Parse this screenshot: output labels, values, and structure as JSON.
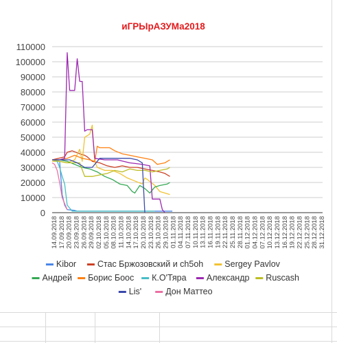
{
  "chart_data": {
    "type": "line",
    "title": "иГРЫрАЗУМа2018",
    "title_color": "#e31a1c",
    "ylim": [
      0,
      110000
    ],
    "yticks": [
      0,
      10000,
      20000,
      30000,
      40000,
      50000,
      60000,
      70000,
      80000,
      90000,
      100000,
      110000
    ],
    "ytick_labels": [
      "0",
      "10000",
      "20000",
      "30000",
      "40000",
      "50000",
      "60000",
      "70000",
      "80000",
      "90000",
      "100000",
      "110000"
    ],
    "x_range": [
      "2018-09-14",
      "2018-12-31"
    ],
    "xtick_labels": [
      "14.09.2018",
      "17.09.2018",
      "20.09.2018",
      "23.09.2018",
      "26.09.2018",
      "29.09.2018",
      "02.10.2018",
      "05.10.2018",
      "08.10.2018",
      "11.10.2018",
      "14.10.2018",
      "17.10.2018",
      "20.10.2018",
      "23.10.2018",
      "26.10.2018",
      "29.10.2018",
      "01.11.2018",
      "04.11.2018",
      "07.11.2018",
      "10.11.2018",
      "13.11.2018",
      "16.11.2018",
      "19.11.2018",
      "22.11.2018",
      "25.11.2018",
      "28.11.2018",
      "01.12.2018",
      "04.12.2018",
      "07.12.2018",
      "10.12.2018",
      "13.12.2018",
      "16.12.2018",
      "19.12.2018",
      "22.12.2018",
      "25.12.2018",
      "28.12.2018",
      "31.12.2018"
    ],
    "grid": true,
    "legend_position": "bottom",
    "series": [
      {
        "name": "Kibor",
        "color": "#4a86e8",
        "points": [
          [
            "2018-09-14",
            35000
          ],
          [
            "2018-09-17",
            34000
          ],
          [
            "2018-09-18",
            12000
          ],
          [
            "2018-09-19",
            5000
          ],
          [
            "2018-09-20",
            2000
          ],
          [
            "2018-09-23",
            1500
          ],
          [
            "2018-09-24",
            1000
          ],
          [
            "2018-10-10",
            1000
          ],
          [
            "2018-10-25",
            1000
          ],
          [
            "2018-11-01",
            1000
          ]
        ]
      },
      {
        "name": "Стас Бржозовский и ch5oh",
        "color": "#cc4125",
        "points": [
          [
            "2018-09-14",
            35000
          ],
          [
            "2018-09-19",
            37000
          ],
          [
            "2018-09-20",
            40000
          ],
          [
            "2018-09-22",
            41000
          ],
          [
            "2018-09-25",
            39000
          ],
          [
            "2018-09-27",
            38000
          ],
          [
            "2018-09-28",
            37000
          ],
          [
            "2018-09-30",
            34000
          ],
          [
            "2018-10-03",
            33000
          ],
          [
            "2018-10-06",
            31000
          ],
          [
            "2018-10-09",
            30000
          ],
          [
            "2018-10-12",
            31000
          ],
          [
            "2018-10-15",
            30000
          ],
          [
            "2018-10-18",
            30000
          ],
          [
            "2018-10-21",
            29000
          ],
          [
            "2018-10-24",
            28000
          ],
          [
            "2018-10-27",
            27000
          ],
          [
            "2018-10-29",
            26000
          ],
          [
            "2018-10-31",
            24000
          ]
        ]
      },
      {
        "name": "Sergey Pavlov",
        "color": "#f1c232",
        "points": [
          [
            "2018-09-14",
            34000
          ],
          [
            "2018-09-17",
            34000
          ],
          [
            "2018-09-20",
            33000
          ],
          [
            "2018-09-23",
            35000
          ],
          [
            "2018-09-25",
            42000
          ],
          [
            "2018-09-26",
            34000
          ],
          [
            "2018-09-27",
            50000
          ],
          [
            "2018-09-29",
            52000
          ],
          [
            "2018-09-30",
            58000
          ],
          [
            "2018-10-01",
            34000
          ],
          [
            "2018-10-02",
            30000
          ],
          [
            "2018-10-05",
            28000
          ],
          [
            "2018-10-08",
            28000
          ],
          [
            "2018-10-11",
            26000
          ],
          [
            "2018-10-14",
            23000
          ],
          [
            "2018-10-17",
            21000
          ],
          [
            "2018-10-20",
            19000
          ],
          [
            "2018-10-21",
            23000
          ],
          [
            "2018-10-22",
            22000
          ],
          [
            "2018-10-25",
            18000
          ],
          [
            "2018-10-27",
            14000
          ],
          [
            "2018-10-29",
            13000
          ],
          [
            "2018-10-31",
            12000
          ]
        ]
      },
      {
        "name": "Андрей",
        "color": "#34a853",
        "points": [
          [
            "2018-09-14",
            35000
          ],
          [
            "2018-09-17",
            35000
          ],
          [
            "2018-09-20",
            34000
          ],
          [
            "2018-09-23",
            32000
          ],
          [
            "2018-09-26",
            30000
          ],
          [
            "2018-09-29",
            29000
          ],
          [
            "2018-10-02",
            27000
          ],
          [
            "2018-10-05",
            24000
          ],
          [
            "2018-10-08",
            22000
          ],
          [
            "2018-10-11",
            19000
          ],
          [
            "2018-10-14",
            18000
          ],
          [
            "2018-10-16",
            14000
          ],
          [
            "2018-10-17",
            13000
          ],
          [
            "2018-10-19",
            18000
          ],
          [
            "2018-10-21",
            16000
          ],
          [
            "2018-10-23",
            13000
          ],
          [
            "2018-10-25",
            17000
          ],
          [
            "2018-10-27",
            18000
          ],
          [
            "2018-10-30",
            19000
          ],
          [
            "2018-10-31",
            20000
          ]
        ]
      },
      {
        "name": "Борис Боос",
        "color": "#ff7f0e",
        "points": [
          [
            "2018-09-14",
            35000
          ],
          [
            "2018-09-17",
            35000
          ],
          [
            "2018-09-20",
            36000
          ],
          [
            "2018-09-23",
            38000
          ],
          [
            "2018-09-26",
            36000
          ],
          [
            "2018-09-29",
            35000
          ],
          [
            "2018-10-01",
            34000
          ],
          [
            "2018-10-02",
            44000
          ],
          [
            "2018-10-03",
            43000
          ],
          [
            "2018-10-07",
            43000
          ],
          [
            "2018-10-09",
            41000
          ],
          [
            "2018-10-12",
            39000
          ],
          [
            "2018-10-15",
            38000
          ],
          [
            "2018-10-18",
            37000
          ],
          [
            "2018-10-21",
            36000
          ],
          [
            "2018-10-24",
            35000
          ],
          [
            "2018-10-26",
            32000
          ],
          [
            "2018-10-29",
            33000
          ],
          [
            "2018-10-30",
            34000
          ],
          [
            "2018-10-31",
            35000
          ]
        ]
      },
      {
        "name": "К.О'Тяра",
        "color": "#46bdc6",
        "points": [
          [
            "2018-09-14",
            35000
          ],
          [
            "2018-09-16",
            34000
          ],
          [
            "2018-09-17",
            30000
          ],
          [
            "2018-09-18",
            24000
          ],
          [
            "2018-09-19",
            19000
          ],
          [
            "2018-09-20",
            5000
          ],
          [
            "2018-09-21",
            3000
          ],
          [
            "2018-09-22",
            1000
          ],
          [
            "2018-10-25",
            1000
          ]
        ]
      },
      {
        "name": "Александр",
        "color": "#9c27b0",
        "points": [
          [
            "2018-09-14",
            35000
          ],
          [
            "2018-09-17",
            35000
          ],
          [
            "2018-09-19",
            36000
          ],
          [
            "2018-09-20",
            106000
          ],
          [
            "2018-09-21",
            81000
          ],
          [
            "2018-09-23",
            81000
          ],
          [
            "2018-09-24",
            102000
          ],
          [
            "2018-09-25",
            87000
          ],
          [
            "2018-09-26",
            87000
          ],
          [
            "2018-09-27",
            54000
          ],
          [
            "2018-09-28",
            55000
          ],
          [
            "2018-09-30",
            55000
          ],
          [
            "2018-10-01",
            36000
          ],
          [
            "2018-10-05",
            35000
          ],
          [
            "2018-10-10",
            35000
          ],
          [
            "2018-10-15",
            33000
          ],
          [
            "2018-10-20",
            32000
          ],
          [
            "2018-10-23",
            31000
          ],
          [
            "2018-10-24",
            9000
          ],
          [
            "2018-10-27",
            9000
          ],
          [
            "2018-10-28",
            2000
          ],
          [
            "2018-10-29",
            0
          ]
        ]
      },
      {
        "name": "Ruscash",
        "color": "#bcbd22",
        "points": [
          [
            "2018-09-14",
            35000
          ],
          [
            "2018-09-17",
            34000
          ],
          [
            "2018-09-20",
            33000
          ],
          [
            "2018-09-23",
            33000
          ],
          [
            "2018-09-25",
            33000
          ],
          [
            "2018-09-27",
            24000
          ],
          [
            "2018-09-30",
            24000
          ],
          [
            "2018-10-03",
            25000
          ],
          [
            "2018-10-06",
            26000
          ],
          [
            "2018-10-09",
            28000
          ],
          [
            "2018-10-12",
            27000
          ],
          [
            "2018-10-15",
            29000
          ],
          [
            "2018-10-18",
            28000
          ],
          [
            "2018-10-21",
            28000
          ],
          [
            "2018-10-24",
            27000
          ],
          [
            "2018-10-27",
            28000
          ],
          [
            "2018-10-30",
            29000
          ],
          [
            "2018-10-31",
            30000
          ]
        ]
      },
      {
        "name": "Lis'",
        "color": "#3949ab",
        "points": [
          [
            "2018-09-14",
            35000
          ],
          [
            "2018-09-18",
            35000
          ],
          [
            "2018-09-21",
            35000
          ],
          [
            "2018-09-24",
            33000
          ],
          [
            "2018-09-27",
            30000
          ],
          [
            "2018-09-30",
            30000
          ],
          [
            "2018-10-03",
            36000
          ],
          [
            "2018-10-06",
            36000
          ],
          [
            "2018-10-10",
            36000
          ],
          [
            "2018-10-15",
            36000
          ],
          [
            "2018-10-18",
            35000
          ],
          [
            "2018-10-20",
            33000
          ],
          [
            "2018-10-21",
            0
          ]
        ]
      },
      {
        "name": "Дон Маттео",
        "color": "#ec6fa3",
        "points": [
          [
            "2018-09-14",
            33000
          ],
          [
            "2018-09-15",
            32000
          ],
          [
            "2018-09-16",
            28000
          ],
          [
            "2018-09-17",
            20000
          ],
          [
            "2018-09-18",
            10000
          ],
          [
            "2018-09-19",
            6000
          ],
          [
            "2018-09-20",
            2000
          ]
        ]
      }
    ]
  }
}
